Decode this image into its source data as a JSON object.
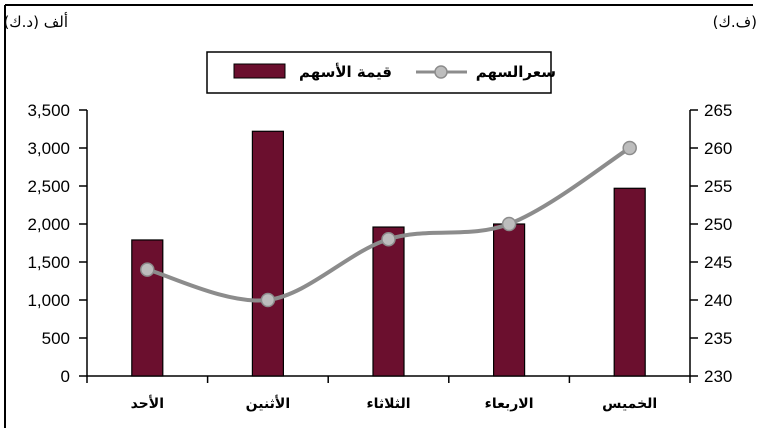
{
  "chart_data": {
    "type": "bar",
    "categories": [
      "الأحد",
      "الأثنين",
      "الثلاثاء",
      "الاربعاء",
      "الخميس"
    ],
    "series": [
      {
        "name": "قيمة الأسهم",
        "type": "bar",
        "axis": "left",
        "values": [
          1790,
          3220,
          1960,
          2000,
          2470
        ],
        "color": "#6b0f2e"
      },
      {
        "name": "سعرالسهم",
        "type": "line",
        "axis": "right",
        "values": [
          244,
          240,
          248,
          250,
          260
        ],
        "color": "#8c8c8c"
      }
    ],
    "y_left": {
      "unit": "ألف (د.ك)",
      "ylim": [
        0,
        3500
      ],
      "ticks": [
        "0",
        "500",
        "1,000",
        "1,500",
        "2,000",
        "2,500",
        "3,000",
        "3,500"
      ]
    },
    "y_right": {
      "unit": "(ف.ك)",
      "ylim": [
        230,
        265
      ],
      "ticks": [
        "230",
        "235",
        "240",
        "245",
        "250",
        "255",
        "260",
        "265"
      ]
    },
    "legend": "top-center",
    "grid": false
  }
}
